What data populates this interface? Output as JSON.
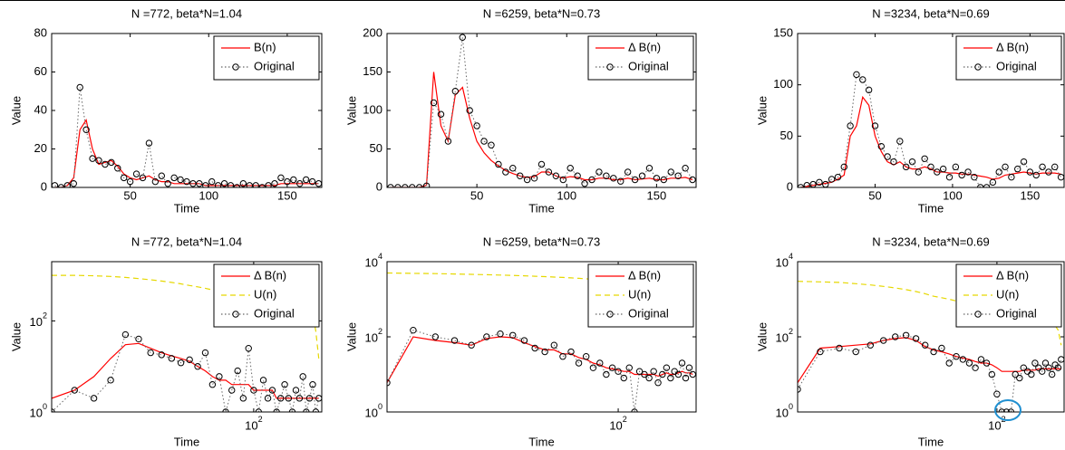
{
  "chart_data": [
    {
      "type": "line",
      "title": "N =772, beta*N=1.04",
      "xlabel": "Time",
      "ylabel": "Value",
      "xlim": [
        0,
        172
      ],
      "ylim": [
        0,
        80
      ],
      "xticks": [
        50,
        100,
        150
      ],
      "yticks": [
        0,
        20,
        40,
        60,
        80
      ],
      "legend": "upper right",
      "x": [
        2,
        6,
        10,
        14,
        18,
        22,
        26,
        30,
        34,
        38,
        42,
        46,
        50,
        54,
        58,
        62,
        66,
        70,
        74,
        78,
        82,
        86,
        90,
        94,
        98,
        102,
        106,
        110,
        114,
        118,
        122,
        126,
        130,
        134,
        138,
        142,
        146,
        150,
        154,
        158,
        162,
        166,
        170
      ],
      "series": [
        {
          "name": "B(n)",
          "color": "#ff0000",
          "style": "solid",
          "values": [
            0,
            0,
            1,
            5,
            30,
            35,
            20,
            12,
            13,
            14,
            11,
            7,
            5,
            4,
            5,
            6,
            4,
            3,
            3,
            2,
            2,
            2,
            2,
            2,
            1,
            1,
            1,
            1,
            1,
            1,
            1,
            1,
            1,
            1,
            1,
            1,
            2,
            2,
            2,
            2,
            2,
            2,
            2
          ]
        },
        {
          "name": "Original",
          "color": "#000000",
          "style": "dotted",
          "marker": "circle",
          "values": [
            1,
            0,
            1,
            2,
            52,
            30,
            15,
            14,
            12,
            13,
            10,
            5,
            3,
            7,
            5,
            23,
            3,
            6,
            2,
            5,
            4,
            3,
            2,
            2,
            1,
            3,
            1,
            2,
            1,
            0,
            2,
            1,
            1,
            0,
            1,
            2,
            5,
            3,
            4,
            2,
            4,
            3,
            2
          ]
        }
      ]
    },
    {
      "type": "line",
      "title": "N =6259, beta*N=0.73",
      "xlabel": "Time",
      "ylabel": "Value",
      "xlim": [
        0,
        172
      ],
      "ylim": [
        0,
        200
      ],
      "xticks": [
        50,
        100,
        150
      ],
      "yticks": [
        0,
        50,
        100,
        150,
        200
      ],
      "legend": "upper right",
      "x": [
        2,
        6,
        10,
        14,
        18,
        22,
        26,
        30,
        34,
        38,
        42,
        46,
        50,
        54,
        58,
        62,
        66,
        70,
        74,
        78,
        82,
        86,
        90,
        94,
        98,
        102,
        106,
        110,
        114,
        118,
        122,
        126,
        130,
        134,
        138,
        142,
        146,
        150,
        154,
        158,
        162,
        166,
        170
      ],
      "series": [
        {
          "name": "Δ B(n)",
          "color": "#ff0000",
          "style": "solid",
          "values": [
            0,
            0,
            0,
            0,
            0,
            3,
            150,
            80,
            60,
            120,
            130,
            90,
            60,
            45,
            35,
            28,
            22,
            18,
            15,
            13,
            14,
            20,
            20,
            15,
            12,
            14,
            13,
            10,
            10,
            12,
            12,
            10,
            10,
            12,
            10,
            11,
            12,
            10,
            10,
            12,
            12,
            13,
            10
          ]
        },
        {
          "name": "Original",
          "color": "#000000",
          "style": "dotted",
          "marker": "circle",
          "values": [
            0,
            0,
            0,
            0,
            0,
            2,
            110,
            95,
            60,
            125,
            195,
            100,
            80,
            60,
            55,
            30,
            20,
            25,
            15,
            10,
            12,
            30,
            20,
            15,
            10,
            25,
            15,
            5,
            10,
            20,
            15,
            12,
            8,
            20,
            10,
            15,
            25,
            12,
            10,
            20,
            15,
            25,
            10
          ]
        }
      ]
    },
    {
      "type": "line",
      "title": "N =3234, beta*N=0.69",
      "xlabel": "Time",
      "ylabel": "Value",
      "xlim": [
        0,
        172
      ],
      "ylim": [
        0,
        150
      ],
      "xticks": [
        50,
        100,
        150
      ],
      "yticks": [
        0,
        50,
        100,
        150
      ],
      "legend": "upper right",
      "x": [
        2,
        6,
        10,
        14,
        18,
        22,
        26,
        30,
        34,
        38,
        42,
        46,
        50,
        54,
        58,
        62,
        66,
        70,
        74,
        78,
        82,
        86,
        90,
        94,
        98,
        102,
        106,
        110,
        114,
        118,
        122,
        126,
        130,
        134,
        138,
        142,
        146,
        150,
        154,
        158,
        162,
        166,
        170
      ],
      "series": [
        {
          "name": "Δ B(n)",
          "color": "#ff0000",
          "style": "solid",
          "values": [
            0,
            1,
            2,
            3,
            4,
            5,
            8,
            12,
            50,
            60,
            88,
            80,
            50,
            35,
            25,
            22,
            25,
            20,
            18,
            18,
            20,
            18,
            15,
            15,
            14,
            14,
            13,
            13,
            12,
            11,
            10,
            8,
            9,
            12,
            13,
            14,
            15,
            14,
            13,
            14,
            14,
            14,
            13
          ]
        },
        {
          "name": "Original",
          "color": "#000000",
          "style": "dotted",
          "marker": "circle",
          "values": [
            0,
            2,
            3,
            5,
            3,
            8,
            10,
            20,
            60,
            110,
            105,
            95,
            60,
            40,
            30,
            25,
            45,
            20,
            25,
            15,
            28,
            20,
            15,
            18,
            10,
            20,
            12,
            15,
            10,
            0,
            0,
            5,
            15,
            20,
            10,
            18,
            25,
            15,
            12,
            20,
            15,
            20,
            10
          ]
        }
      ]
    },
    {
      "type": "line",
      "title": "N =772, beta*N=1.04",
      "xlabel": "Time",
      "ylabel": "Value",
      "xscale": "log",
      "yscale": "log",
      "xlim": [
        20,
        172
      ],
      "ylim": [
        1,
        2000
      ],
      "xticks": [
        {
          "value": 100,
          "label": "10^2"
        }
      ],
      "yticks": [
        {
          "value": 1,
          "label": "10^0"
        },
        {
          "value": 100,
          "label": "10^2"
        }
      ],
      "legend": "upper right",
      "x": [
        20,
        24,
        28,
        32,
        36,
        40,
        44,
        48,
        52,
        56,
        60,
        64,
        68,
        72,
        76,
        80,
        84,
        88,
        92,
        96,
        100,
        104,
        108,
        112,
        116,
        120,
        124,
        128,
        132,
        136,
        140,
        144,
        148,
        152,
        156,
        160,
        164,
        168
      ],
      "series": [
        {
          "name": "Δ B(n)",
          "color": "#ff0000",
          "style": "solid",
          "values": [
            2,
            3,
            6,
            15,
            30,
            32,
            25,
            20,
            17,
            15,
            13,
            10,
            8,
            6,
            5,
            5,
            4,
            4,
            4,
            4,
            3,
            3,
            3,
            3,
            3,
            2,
            2,
            2,
            2,
            2,
            2,
            2,
            2,
            2,
            2,
            2,
            2,
            2
          ]
        },
        {
          "name": "U(n)",
          "color": "#e6d800",
          "style": "dashed",
          "values": [
            1000,
            1000,
            980,
            950,
            900,
            850,
            800,
            750,
            700,
            650,
            600,
            560,
            520,
            480,
            450,
            420,
            400,
            380,
            350,
            320,
            300,
            280,
            260,
            240,
            220,
            200,
            200,
            200,
            200,
            200,
            200,
            200,
            200,
            200,
            190,
            150,
            60,
            15
          ]
        },
        {
          "name": "Original",
          "color": "#000000",
          "style": "dotted",
          "marker": "circle",
          "values": [
            1,
            3,
            2,
            5,
            50,
            40,
            20,
            18,
            15,
            12,
            14,
            10,
            20,
            4,
            6,
            1,
            3,
            8,
            2,
            25,
            3,
            1,
            5,
            2,
            3,
            1,
            2,
            4,
            2,
            1,
            3,
            2,
            6,
            1,
            2,
            4,
            1,
            2
          ]
        }
      ]
    },
    {
      "type": "line",
      "title": "N =6259, beta*N=0.73",
      "xlabel": "Time",
      "ylabel": "Value",
      "xscale": "log",
      "yscale": "log",
      "xlim": [
        20,
        172
      ],
      "ylim": [
        1,
        10000
      ],
      "xticks": [
        {
          "value": 100,
          "label": "10^2"
        }
      ],
      "yticks": [
        {
          "value": 1,
          "label": "10^0"
        },
        {
          "value": 100,
          "label": "10^2"
        },
        {
          "value": 10000,
          "label": "10^4"
        }
      ],
      "legend": "upper right",
      "x": [
        20,
        24,
        28,
        32,
        36,
        40,
        44,
        48,
        52,
        56,
        60,
        64,
        68,
        72,
        76,
        80,
        84,
        88,
        92,
        96,
        100,
        104,
        108,
        112,
        116,
        120,
        124,
        128,
        132,
        136,
        140,
        144,
        148,
        152,
        156,
        160,
        164,
        168
      ],
      "series": [
        {
          "name": "Δ B(n)",
          "color": "#ff0000",
          "style": "solid",
          "values": [
            6,
            100,
            80,
            70,
            60,
            90,
            100,
            95,
            70,
            55,
            45,
            45,
            35,
            35,
            28,
            25,
            20,
            18,
            15,
            14,
            13,
            12,
            12,
            10,
            10,
            10,
            10,
            10,
            9,
            10,
            11,
            10,
            10,
            11,
            12,
            11,
            11,
            10
          ]
        },
        {
          "name": "U(n)",
          "color": "#e6d800",
          "style": "dashed",
          "values": [
            5000,
            4900,
            4800,
            4700,
            4600,
            4500,
            4400,
            4300,
            4200,
            4100,
            4000,
            3900,
            3800,
            3700,
            3600,
            3500,
            3400,
            3350,
            3300,
            3250,
            3200,
            3150,
            3100,
            3050,
            3000,
            2950,
            2900,
            2850,
            2800,
            2800,
            2800,
            2800,
            2800,
            2800,
            2800,
            2800,
            2800,
            2800
          ]
        },
        {
          "name": "Original",
          "color": "#000000",
          "style": "dotted",
          "marker": "circle",
          "values": [
            6,
            150,
            100,
            80,
            60,
            100,
            120,
            110,
            80,
            50,
            40,
            60,
            30,
            40,
            20,
            30,
            15,
            20,
            10,
            15,
            12,
            8,
            15,
            1,
            12,
            10,
            8,
            12,
            6,
            10,
            15,
            8,
            12,
            10,
            20,
            8,
            15,
            10
          ]
        }
      ]
    },
    {
      "type": "line",
      "title": "N =3234, beta*N=0.69",
      "xlabel": "Time",
      "ylabel": "Value",
      "xscale": "log",
      "yscale": "log",
      "xlim": [
        20,
        172
      ],
      "ylim": [
        1,
        10000
      ],
      "xticks": [
        {
          "value": 100,
          "label": "10^2"
        }
      ],
      "yticks": [
        {
          "value": 1,
          "label": "10^0"
        },
        {
          "value": 100,
          "label": "10^2"
        },
        {
          "value": 10000,
          "label": "10^4"
        }
      ],
      "legend": "upper right",
      "x": [
        20,
        24,
        28,
        32,
        36,
        40,
        44,
        48,
        52,
        56,
        60,
        64,
        68,
        72,
        76,
        80,
        84,
        88,
        92,
        96,
        100,
        104,
        108,
        112,
        116,
        120,
        124,
        128,
        132,
        136,
        140,
        144,
        148,
        152,
        156,
        160,
        164,
        168
      ],
      "series": [
        {
          "name": "Δ B(n)",
          "color": "#ff0000",
          "style": "solid",
          "values": [
            6,
            50,
            55,
            60,
            65,
            80,
            90,
            95,
            80,
            55,
            45,
            40,
            35,
            30,
            27,
            25,
            22,
            20,
            20,
            18,
            15,
            12,
            12,
            12,
            12,
            12,
            13,
            13,
            13,
            13,
            14,
            14,
            14,
            14,
            14,
            14,
            14,
            14
          ]
        },
        {
          "name": "U(n)",
          "color": "#e6d800",
          "style": "dashed",
          "values": [
            3000,
            2900,
            2800,
            2600,
            2400,
            2200,
            2000,
            1800,
            1600,
            1400,
            1200,
            1100,
            1000,
            900,
            800,
            750,
            700,
            650,
            600,
            550,
            500,
            450,
            420,
            400,
            380,
            350,
            330,
            300,
            280,
            260,
            250,
            240,
            230,
            220,
            210,
            200,
            150,
            60
          ]
        },
        {
          "name": "Original",
          "color": "#000000",
          "style": "dotted",
          "marker": "circle",
          "values": [
            4,
            40,
            50,
            40,
            60,
            80,
            100,
            110,
            90,
            60,
            40,
            50,
            20,
            30,
            25,
            20,
            15,
            25,
            20,
            10,
            3,
            1,
            1,
            1,
            10,
            8,
            15,
            12,
            10,
            20,
            15,
            12,
            20,
            15,
            10,
            18,
            15,
            25
          ]
        }
      ]
    }
  ]
}
